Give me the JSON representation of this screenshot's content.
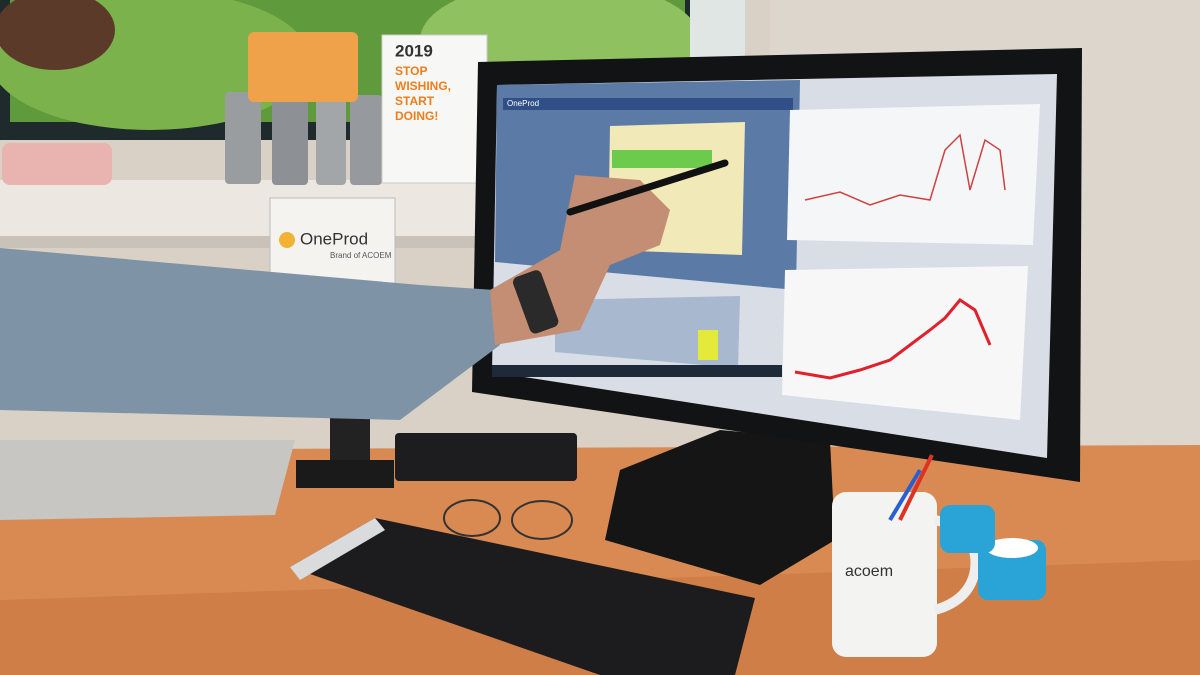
{
  "poster": {
    "year": "2019",
    "slogan_lines": [
      "STOP",
      "WISHING,",
      "START",
      "DOING!"
    ]
  },
  "sign": {
    "brand": "OneProd",
    "tagline": "Brand of ACOEM"
  },
  "screen": {
    "app": "OneProd"
  },
  "mug": {
    "logo": "acoem"
  }
}
